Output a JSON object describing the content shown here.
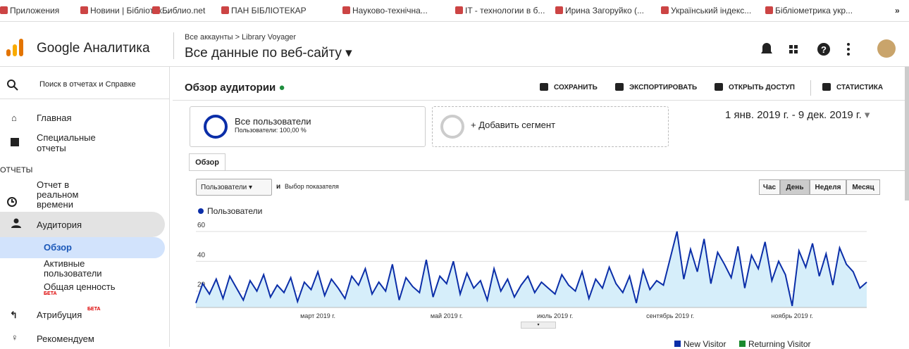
{
  "bookmarks": [
    "Приложения",
    "Новини | Бібліотек...",
    "Библио.net",
    "ПАН БІБЛІОТЕКАР",
    "Науково-технічна...",
    "IT - технологии в б...",
    "Ирина Загоруйко (...",
    "Український індекс...",
    "Бібліометрика укр..."
  ],
  "header": {
    "product": "Google Аналитика",
    "breadcrumb": "Все аккаунты > Library Voyager",
    "view": "Все данные по веб-сайту"
  },
  "sidebar": {
    "search": "Поиск в отчетах и Справке",
    "items": [
      "Главная",
      "Специальные отчеты"
    ],
    "section": "ОТЧЕТЫ",
    "reports": [
      "Отчет в реальном времени",
      "Аудитория"
    ],
    "audience_sub": [
      "Обзор",
      "Активные пользователи",
      "Общая ценность"
    ],
    "beta": "БЕТА",
    "attribution": "Атрибуция",
    "recommend": "Рекомендуем"
  },
  "report": {
    "title": "Обзор аудитории",
    "actions": [
      "СОХРАНИТЬ",
      "ЭКСПОРТИРОВАТЬ",
      "ОТКРЫТЬ ДОСТУП",
      "СТАТИСТИКА"
    ],
    "segment": "Все пользователи",
    "segment_sub": "Пользователи: 100,00 %",
    "add_segment": "+ Добавить сегмент",
    "date_range": "1 янв. 2019 г. - 9 дек. 2019 г.",
    "tab": "Обзор",
    "metric": "Пользователи",
    "and": "и",
    "choose_metric": "Выбор показателя",
    "granularity": [
      "Час",
      "День",
      "Неделя",
      "Месяц"
    ]
  },
  "chart_data": {
    "type": "line",
    "area": true,
    "grid": true,
    "categories": [
      null,
      null,
      null,
      null,
      null,
      null,
      null,
      null,
      null,
      null,
      null,
      null,
      null,
      null,
      null,
      null,
      null,
      null,
      "март 2019 г.",
      null,
      null,
      null,
      null,
      null,
      null,
      null,
      null,
      null,
      null,
      null,
      null,
      null,
      null,
      null,
      null,
      null,
      null,
      "май 2019 г.",
      null,
      null,
      null,
      null,
      null,
      null,
      null,
      null,
      null,
      null,
      null,
      null,
      null,
      null,
      null,
      "июль 2019 г.",
      null,
      null,
      null,
      null,
      null,
      null,
      null,
      null,
      null,
      null,
      null,
      null,
      null,
      null,
      null,
      null,
      "сентябрь 2019 г.",
      null,
      null,
      null,
      null,
      null,
      null,
      null,
      null,
      null,
      null,
      null,
      null,
      null,
      null,
      null,
      null,
      null,
      "ноябрь 2019 г.",
      null,
      null,
      null,
      null,
      null,
      null,
      null,
      null,
      null,
      null,
      null
    ],
    "series": [
      {
        "name": "Пользователи",
        "color": "#0b2ea8",
        "values": [
          12,
          25,
          18,
          28,
          15,
          30,
          22,
          14,
          27,
          20,
          31,
          16,
          24,
          19,
          29,
          13,
          26,
          21,
          33,
          17,
          28,
          22,
          15,
          30,
          24,
          35,
          18,
          26,
          20,
          38,
          14,
          29,
          23,
          19,
          41,
          16,
          30,
          25,
          40,
          18,
          32,
          22,
          27,
          14,
          35,
          20,
          28,
          16,
          24,
          30,
          19,
          26,
          22,
          18,
          31,
          24,
          20,
          33,
          15,
          28,
          22,
          36,
          25,
          19,
          30,
          12,
          34,
          21,
          27,
          24,
          42,
          60,
          28,
          48,
          33,
          55,
          25,
          46,
          38,
          29,
          50,
          22,
          44,
          35,
          53,
          27,
          40,
          31,
          10,
          47,
          36,
          52,
          30,
          45,
          24,
          49,
          38,
          33,
          22,
          26
        ]
      }
    ],
    "ylim": [
      9,
      68
    ],
    "yticks": [
      20,
      40,
      60
    ]
  },
  "pie_legend": [
    {
      "name": "New Visitor",
      "color": "#0b2ea8"
    },
    {
      "name": "Returning Visitor",
      "color": "#1b8a2e"
    }
  ]
}
